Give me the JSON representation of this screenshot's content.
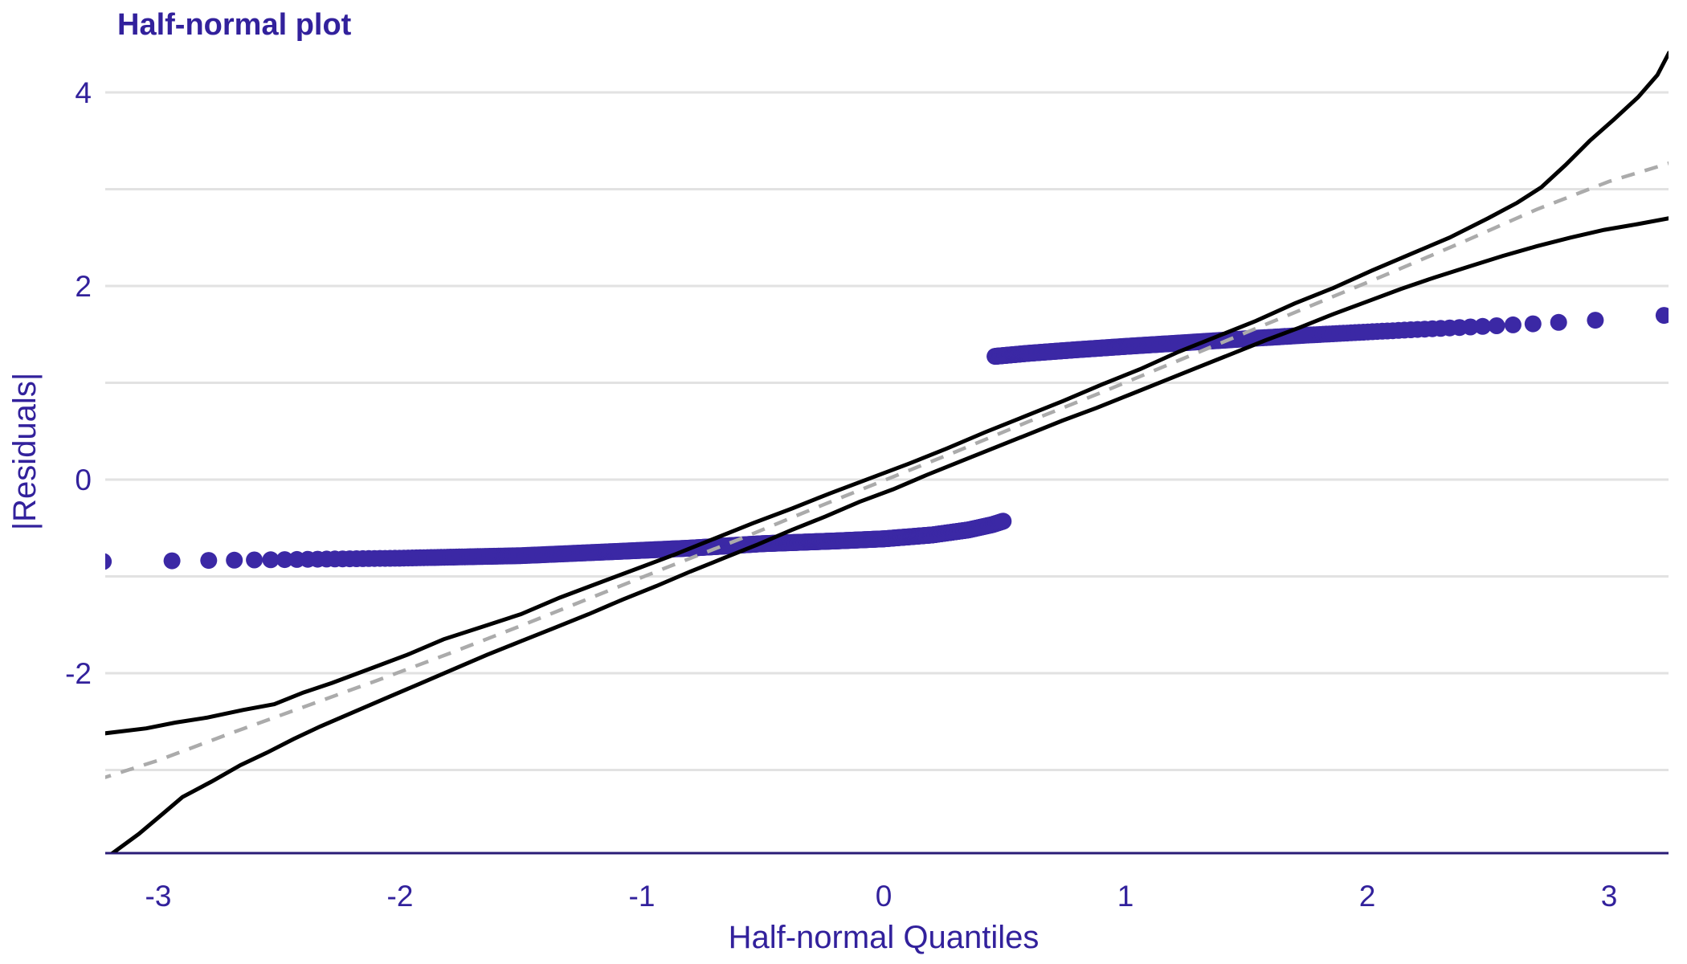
{
  "title": "Half-normal plot",
  "x_axis": {
    "label": "Half-normal Quantiles",
    "ticks": [
      -3,
      -2,
      -1,
      0,
      1,
      2,
      3
    ]
  },
  "y_axis": {
    "label": "|Residuals|",
    "ticks": [
      4,
      2,
      0,
      -2
    ],
    "gridlines": [
      -3,
      -2,
      -1,
      0,
      1,
      2,
      3,
      4
    ]
  },
  "colors": {
    "text": "#32219C",
    "points": "#3B28A5",
    "axis_line": "#2A1C77",
    "gridline": "#E2E2E2",
    "envelope_line": "#000000",
    "median_line": "#ABABAB",
    "background": "#FFFFFF"
  },
  "chart_data": {
    "type": "scatter",
    "title": "Half-normal plot",
    "xlabel": "Half-normal Quantiles",
    "ylabel": "|Residuals|",
    "xlim": [
      -3.22,
      3.245
    ],
    "ylim": [
      -3.86,
      4.5
    ],
    "grid": "horizontal-only",
    "legend": "none",
    "n_points": 1000,
    "point_radius_px": 10.5,
    "series": [
      {
        "name": "residuals-lower-band",
        "style": "points",
        "rank_start": 1,
        "rank_end": 690,
        "y_by_q": [
          [
            -3.3,
            -0.848
          ],
          [
            -2.6,
            -0.83
          ],
          [
            -2.0,
            -0.812
          ],
          [
            -1.5,
            -0.786
          ],
          [
            -1.1,
            -0.742
          ],
          [
            -0.8,
            -0.708
          ],
          [
            -0.5,
            -0.662
          ],
          [
            -0.2,
            -0.634
          ],
          [
            0.0,
            -0.612
          ],
          [
            0.2,
            -0.572
          ],
          [
            0.35,
            -0.52
          ],
          [
            0.45,
            -0.465
          ],
          [
            0.5,
            -0.425
          ]
        ]
      },
      {
        "name": "residuals-upper-band",
        "style": "points",
        "rank_start": 678,
        "rank_end": 1000,
        "y_by_q": [
          [
            0.455,
            1.272
          ],
          [
            0.6,
            1.305
          ],
          [
            0.8,
            1.342
          ],
          [
            1.0,
            1.376
          ],
          [
            1.25,
            1.415
          ],
          [
            1.5,
            1.455
          ],
          [
            1.75,
            1.492
          ],
          [
            2.0,
            1.525
          ],
          [
            2.25,
            1.556
          ],
          [
            2.5,
            1.585
          ],
          [
            2.75,
            1.618
          ],
          [
            3.0,
            1.655
          ],
          [
            3.15,
            1.682
          ],
          [
            3.3,
            1.71
          ]
        ]
      },
      {
        "name": "envelope-upper",
        "style": "line",
        "points": [
          [
            -3.25,
            -2.63
          ],
          [
            -3.05,
            -2.57
          ],
          [
            -2.93,
            -2.51
          ],
          [
            -2.8,
            -2.46
          ],
          [
            -2.65,
            -2.38
          ],
          [
            -2.52,
            -2.32
          ],
          [
            -2.4,
            -2.2
          ],
          [
            -2.28,
            -2.1
          ],
          [
            -2.12,
            -1.95
          ],
          [
            -1.97,
            -1.81
          ],
          [
            -1.82,
            -1.65
          ],
          [
            -1.66,
            -1.52
          ],
          [
            -1.5,
            -1.39
          ],
          [
            -1.34,
            -1.22
          ],
          [
            -1.18,
            -1.07
          ],
          [
            -1.02,
            -0.92
          ],
          [
            -0.86,
            -0.77
          ],
          [
            -0.7,
            -0.61
          ],
          [
            -0.54,
            -0.45
          ],
          [
            -0.38,
            -0.3
          ],
          [
            -0.22,
            -0.14
          ],
          [
            -0.06,
            0.01
          ],
          [
            0.1,
            0.16
          ],
          [
            0.26,
            0.32
          ],
          [
            0.42,
            0.49
          ],
          [
            0.58,
            0.65
          ],
          [
            0.74,
            0.81
          ],
          [
            0.9,
            0.98
          ],
          [
            1.06,
            1.14
          ],
          [
            1.22,
            1.32
          ],
          [
            1.38,
            1.48
          ],
          [
            1.54,
            1.64
          ],
          [
            1.7,
            1.82
          ],
          [
            1.86,
            1.98
          ],
          [
            2.02,
            2.16
          ],
          [
            2.18,
            2.33
          ],
          [
            2.34,
            2.5
          ],
          [
            2.5,
            2.7
          ],
          [
            2.62,
            2.86
          ],
          [
            2.72,
            3.02
          ],
          [
            2.82,
            3.25
          ],
          [
            2.92,
            3.5
          ],
          [
            3.02,
            3.72
          ],
          [
            3.12,
            3.95
          ],
          [
            3.2,
            4.18
          ],
          [
            3.25,
            4.42
          ]
        ]
      },
      {
        "name": "envelope-lower",
        "style": "line",
        "points": [
          [
            -3.2,
            -3.88
          ],
          [
            -3.08,
            -3.66
          ],
          [
            -2.98,
            -3.45
          ],
          [
            -2.9,
            -3.28
          ],
          [
            -2.78,
            -3.12
          ],
          [
            -2.66,
            -2.95
          ],
          [
            -2.55,
            -2.82
          ],
          [
            -2.44,
            -2.68
          ],
          [
            -2.33,
            -2.55
          ],
          [
            -2.2,
            -2.41
          ],
          [
            -2.06,
            -2.26
          ],
          [
            -1.92,
            -2.11
          ],
          [
            -1.78,
            -1.96
          ],
          [
            -1.64,
            -1.81
          ],
          [
            -1.5,
            -1.67
          ],
          [
            -1.36,
            -1.53
          ],
          [
            -1.22,
            -1.39
          ],
          [
            -1.08,
            -1.24
          ],
          [
            -0.94,
            -1.1
          ],
          [
            -0.8,
            -0.95
          ],
          [
            -0.66,
            -0.81
          ],
          [
            -0.52,
            -0.67
          ],
          [
            -0.38,
            -0.52
          ],
          [
            -0.24,
            -0.38
          ],
          [
            -0.1,
            -0.23
          ],
          [
            0.04,
            -0.1
          ],
          [
            0.18,
            0.05
          ],
          [
            0.32,
            0.19
          ],
          [
            0.46,
            0.33
          ],
          [
            0.6,
            0.47
          ],
          [
            0.74,
            0.61
          ],
          [
            0.88,
            0.74
          ],
          [
            1.02,
            0.88
          ],
          [
            1.16,
            1.02
          ],
          [
            1.3,
            1.16
          ],
          [
            1.44,
            1.3
          ],
          [
            1.58,
            1.44
          ],
          [
            1.72,
            1.57
          ],
          [
            1.86,
            1.71
          ],
          [
            2.0,
            1.84
          ],
          [
            2.14,
            1.97
          ],
          [
            2.28,
            2.09
          ],
          [
            2.42,
            2.2
          ],
          [
            2.56,
            2.31
          ],
          [
            2.7,
            2.41
          ],
          [
            2.84,
            2.5
          ],
          [
            2.98,
            2.58
          ],
          [
            3.12,
            2.64
          ],
          [
            3.25,
            2.7
          ]
        ]
      },
      {
        "name": "median-simulated",
        "style": "dashed-line",
        "points": [
          [
            -3.25,
            -3.1
          ],
          [
            -3.0,
            -2.9
          ],
          [
            -2.7,
            -2.62
          ],
          [
            -2.4,
            -2.35
          ],
          [
            -2.1,
            -2.08
          ],
          [
            -1.8,
            -1.8
          ],
          [
            -1.5,
            -1.51
          ],
          [
            -1.2,
            -1.21
          ],
          [
            -0.9,
            -0.91
          ],
          [
            -0.6,
            -0.62
          ],
          [
            -0.3,
            -0.31
          ],
          [
            0.0,
            -0.01
          ],
          [
            0.3,
            0.29
          ],
          [
            0.6,
            0.6
          ],
          [
            0.9,
            0.9
          ],
          [
            1.2,
            1.21
          ],
          [
            1.5,
            1.52
          ],
          [
            1.8,
            1.83
          ],
          [
            2.1,
            2.14
          ],
          [
            2.4,
            2.46
          ],
          [
            2.7,
            2.79
          ],
          [
            3.0,
            3.08
          ],
          [
            3.25,
            3.27
          ]
        ]
      }
    ]
  }
}
